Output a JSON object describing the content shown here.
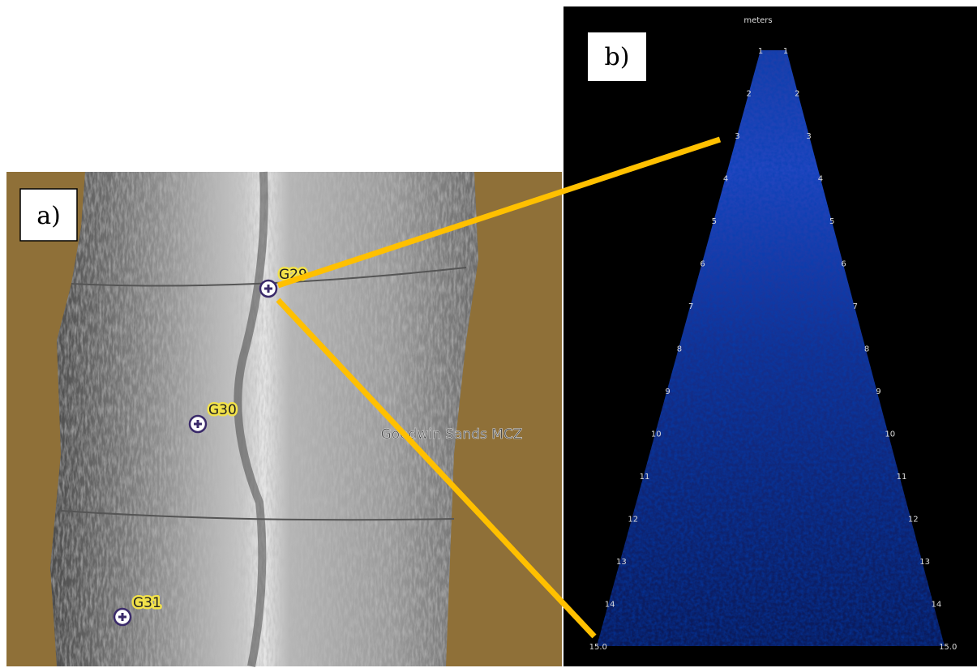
{
  "panel_a": {
    "label": "a)",
    "markers": [
      {
        "label": "G29"
      },
      {
        "label": "G30"
      },
      {
        "label": "G31"
      }
    ],
    "area_label": "Goodwin Sands MCZ"
  },
  "panel_b": {
    "label": "b)",
    "unit_label": "meters",
    "range_labels": [
      "1",
      "2",
      "3",
      "4",
      "5",
      "6",
      "7",
      "8",
      "9",
      "10",
      "11",
      "12",
      "13",
      "14",
      "15.0"
    ]
  }
}
